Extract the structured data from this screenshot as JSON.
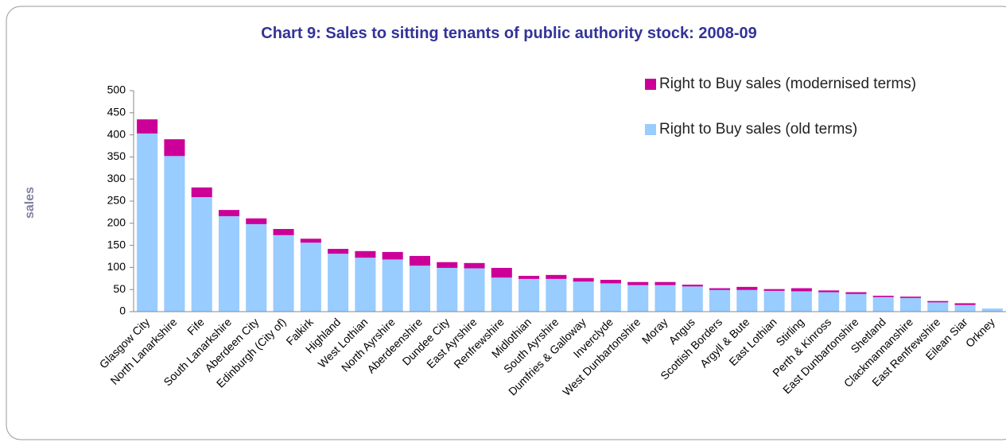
{
  "chart_data": {
    "type": "stacked_bar",
    "title": "Chart 9: Sales to sitting tenants of public authority stock: 2008-09",
    "y_label": "sales",
    "categories": [
      "Glasgow City",
      "North Lanarkshire",
      "Fife",
      "South Lanarkshire",
      "Aberdeen City",
      "Edinburgh (City of)",
      "Falkirk",
      "Highland",
      "West Lothian",
      "North Ayrshire",
      "Aberdeenshire",
      "Dundee City",
      "East Ayrshire",
      "Renfrewshire",
      "Midlothian",
      "South Ayrshire",
      "Dumfries & Galloway",
      "Inverclyde",
      "West Dunbartonshire",
      "Moray",
      "Angus",
      "Scottish Borders",
      "Argyll & Bute",
      "East Lothian",
      "Stirling",
      "Perth & Kinross",
      "East Dunbartonshire",
      "Shetland",
      "Clackmannanshire",
      "East Renfrewshire",
      "Eilean Siar",
      "Orkney"
    ],
    "series": [
      {
        "name": "Right to Buy sales (old terms)",
        "color": "#99ccff",
        "values": [
          403,
          352,
          259,
          216,
          198,
          173,
          156,
          131,
          122,
          118,
          104,
          99,
          98,
          77,
          74,
          74,
          68,
          64,
          60,
          60,
          57,
          49,
          49,
          47,
          46,
          44,
          40,
          33,
          31,
          21,
          15,
          7
        ]
      },
      {
        "name": "Right to Buy sales (modernised terms)",
        "color": "#cc0099",
        "values": [
          32,
          38,
          22,
          14,
          13,
          14,
          9,
          11,
          15,
          17,
          22,
          13,
          12,
          22,
          7,
          9,
          8,
          8,
          7,
          7,
          4,
          4,
          7,
          4,
          7,
          4,
          4,
          3,
          3,
          3,
          4,
          0
        ]
      }
    ],
    "ylim": [
      0,
      500
    ],
    "yticks": [
      0,
      50,
      100,
      150,
      200,
      250,
      300,
      350,
      400,
      450,
      500
    ],
    "legend": "top-right"
  }
}
